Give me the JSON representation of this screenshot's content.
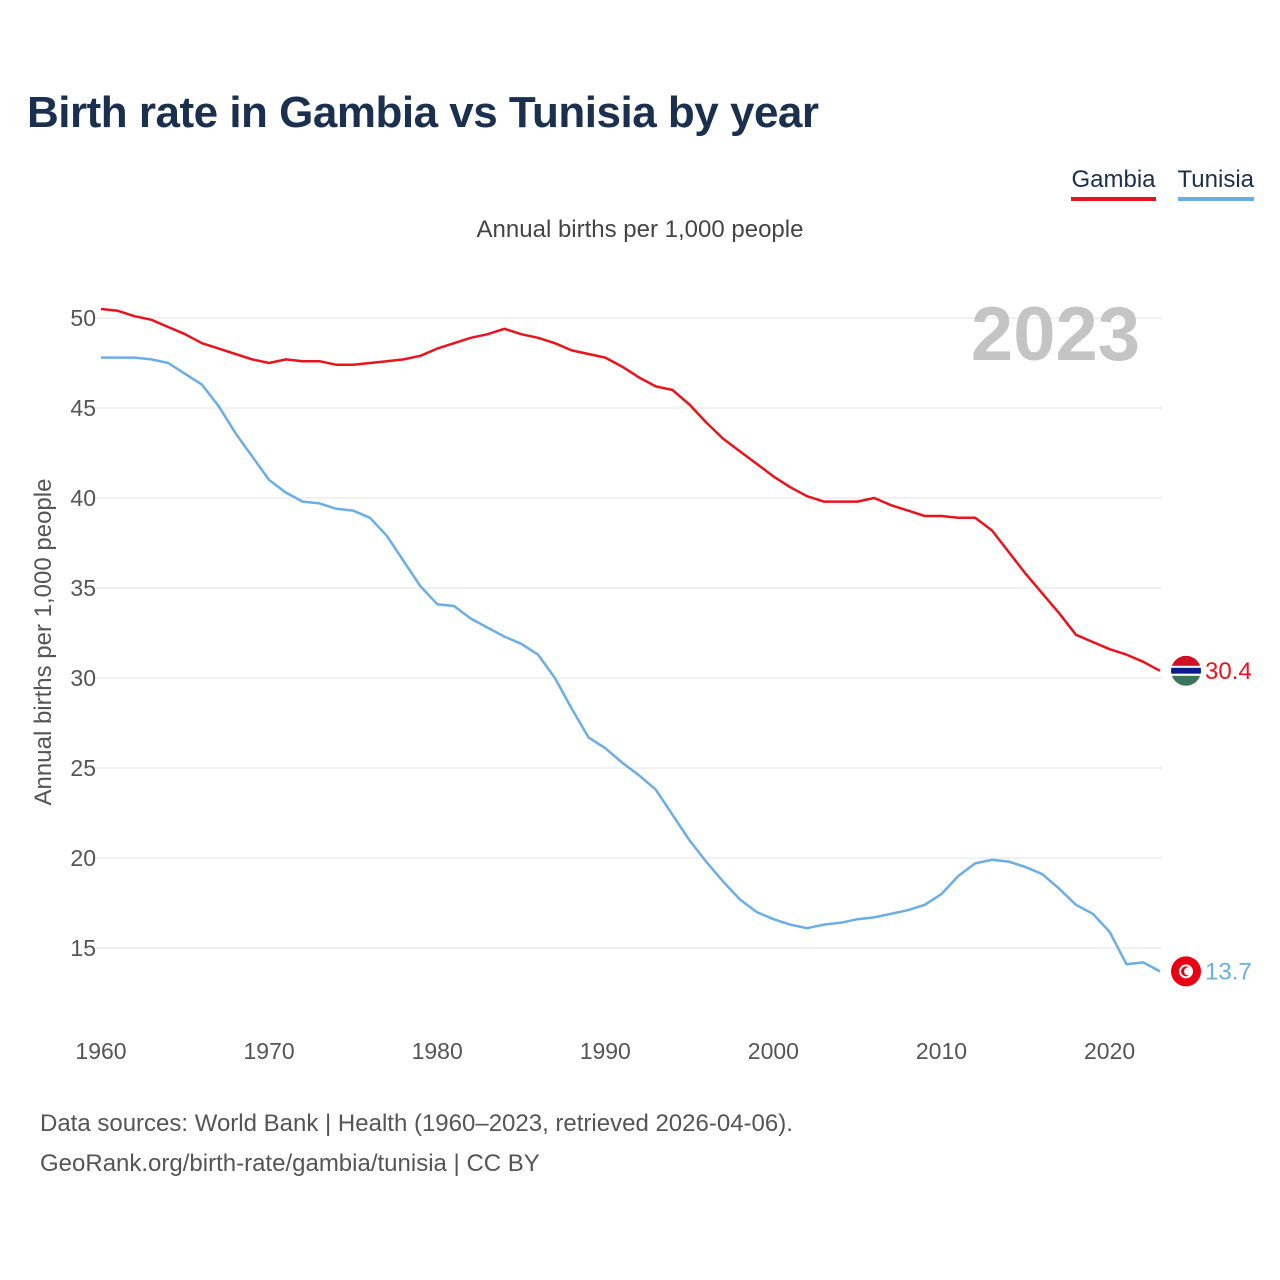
{
  "title": "Birth rate in Gambia vs Tunisia by year",
  "legend": {
    "gambia": "Gambia",
    "tunisia": "Tunisia"
  },
  "subtitle": "Annual births per 1,000 people",
  "source": {
    "line1": "Data sources: World Bank | Health (1960–2023, retrieved 2026-04-06).",
    "line2": "GeoRank.org/birth-rate/gambia/tunisia | CC BY"
  },
  "colors": {
    "gambia": "#e8141c",
    "tunisia": "#6aaee6",
    "year_watermark": "#c4c4c4"
  },
  "chart_data": {
    "type": "line",
    "title": "Birth rate in Gambia vs Tunisia by year",
    "xlabel": "",
    "ylabel": "Annual births per 1,000 people",
    "year_label": "2023",
    "xlim": [
      1960,
      2023
    ],
    "ylim": [
      12,
      52
    ],
    "x_ticks": [
      1960,
      1970,
      1980,
      1990,
      2000,
      2010,
      2020
    ],
    "y_ticks": [
      15,
      20,
      25,
      30,
      35,
      40,
      45,
      50
    ],
    "grid": true,
    "legend_position": "top-right",
    "x": [
      1960,
      1961,
      1962,
      1963,
      1964,
      1965,
      1966,
      1967,
      1968,
      1969,
      1970,
      1971,
      1972,
      1973,
      1974,
      1975,
      1976,
      1977,
      1978,
      1979,
      1980,
      1981,
      1982,
      1983,
      1984,
      1985,
      1986,
      1987,
      1988,
      1989,
      1990,
      1991,
      1992,
      1993,
      1994,
      1995,
      1996,
      1997,
      1998,
      1999,
      2000,
      2001,
      2002,
      2003,
      2004,
      2005,
      2006,
      2007,
      2008,
      2009,
      2010,
      2011,
      2012,
      2013,
      2014,
      2015,
      2016,
      2017,
      2018,
      2019,
      2020,
      2021,
      2022,
      2023
    ],
    "series": [
      {
        "name": "Gambia",
        "color": "#e8141c",
        "end_label": "30.4",
        "values": [
          50.5,
          50.4,
          50.1,
          49.9,
          49.5,
          49.1,
          48.6,
          48.3,
          48.0,
          47.7,
          47.5,
          47.7,
          47.6,
          47.6,
          47.4,
          47.4,
          47.5,
          47.6,
          47.7,
          47.9,
          48.3,
          48.6,
          48.9,
          49.1,
          49.4,
          49.1,
          48.9,
          48.6,
          48.2,
          48.0,
          47.8,
          47.3,
          46.7,
          46.2,
          46.0,
          45.2,
          44.2,
          43.3,
          42.6,
          41.9,
          41.2,
          40.6,
          40.1,
          39.8,
          39.8,
          39.8,
          40.0,
          39.6,
          39.3,
          39.0,
          39.0,
          38.9,
          38.9,
          38.2,
          37.0,
          35.8,
          34.7,
          33.6,
          32.4,
          32.0,
          31.6,
          31.3,
          30.9,
          30.4
        ]
      },
      {
        "name": "Tunisia",
        "color": "#6aaee6",
        "end_label": "13.7",
        "values": [
          47.8,
          47.8,
          47.8,
          47.7,
          47.5,
          46.9,
          46.3,
          45.1,
          43.6,
          42.3,
          41.0,
          40.3,
          39.8,
          39.7,
          39.4,
          39.3,
          38.9,
          37.9,
          36.5,
          35.1,
          34.1,
          34.0,
          33.3,
          32.8,
          32.3,
          31.9,
          31.3,
          30.0,
          28.3,
          26.7,
          26.1,
          25.3,
          24.6,
          23.8,
          22.4,
          21.0,
          19.8,
          18.7,
          17.7,
          17.0,
          16.6,
          16.3,
          16.1,
          16.3,
          16.4,
          16.6,
          16.7,
          16.9,
          17.1,
          17.4,
          18.0,
          19.0,
          19.7,
          19.9,
          19.8,
          19.5,
          19.1,
          18.3,
          17.4,
          16.9,
          15.9,
          14.1,
          14.2,
          13.7
        ]
      }
    ]
  }
}
